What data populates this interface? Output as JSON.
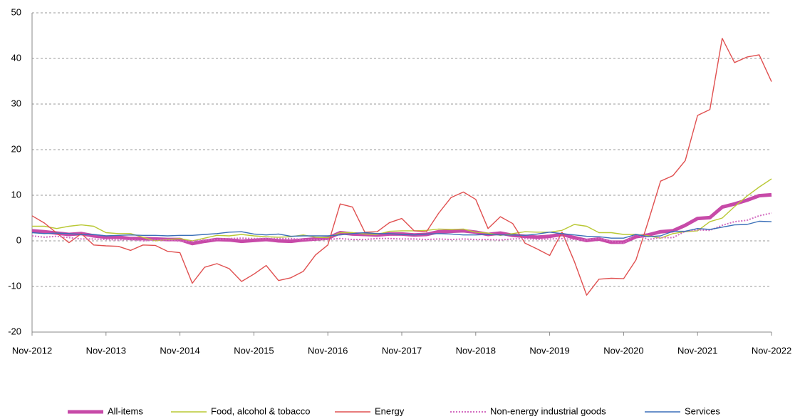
{
  "chart_data": {
    "type": "line",
    "categories": [
      "Nov-2012",
      null,
      null,
      null,
      null,
      null,
      "Nov-2013",
      null,
      null,
      null,
      null,
      null,
      "Nov-2014",
      null,
      null,
      null,
      null,
      null,
      "Nov-2015",
      null,
      null,
      null,
      null,
      null,
      "Nov-2016",
      null,
      null,
      null,
      null,
      null,
      "Nov-2017",
      null,
      null,
      null,
      null,
      null,
      "Nov-2018",
      null,
      null,
      null,
      null,
      null,
      "Nov-2019",
      null,
      null,
      null,
      null,
      null,
      "Nov-2020",
      null,
      null,
      null,
      null,
      null,
      "Nov-2021",
      null,
      null,
      null,
      null,
      null,
      "Nov-2022"
    ],
    "ylim": [
      -20,
      50
    ],
    "yticks": [
      -20,
      -10,
      0,
      10,
      20,
      30,
      40,
      50
    ],
    "grid": true,
    "legend": "bottom",
    "series": [
      {
        "name": "All-items",
        "color": "#c74aa8",
        "width": 5,
        "values": [
          2.2,
          2.0,
          1.7,
          1.4,
          1.6,
          1.1,
          0.8,
          0.8,
          0.5,
          0.5,
          0.4,
          0.3,
          0.3,
          -0.6,
          -0.1,
          0.3,
          0.2,
          -0.1,
          0.1,
          0.3,
          0.0,
          -0.1,
          0.2,
          0.4,
          0.6,
          1.8,
          1.5,
          1.4,
          1.3,
          1.5,
          1.5,
          1.3,
          1.4,
          2.0,
          2.1,
          2.2,
          1.9,
          1.4,
          1.7,
          1.2,
          1.0,
          0.8,
          1.0,
          1.4,
          0.7,
          0.1,
          0.4,
          -0.3,
          -0.3,
          0.9,
          1.3,
          2.0,
          2.2,
          3.4,
          4.9,
          5.1,
          7.4,
          8.1,
          8.9,
          9.9,
          10.1
        ]
      },
      {
        "name": "Food, alcohol & tobacco",
        "color": "#b9c834",
        "width": 1.4,
        "values": [
          3.2,
          3.2,
          2.7,
          3.2,
          3.5,
          3.2,
          1.8,
          1.6,
          1.6,
          0.8,
          0.0,
          0.3,
          0.5,
          0.0,
          0.6,
          1.2,
          1.1,
          1.4,
          1.1,
          0.9,
          0.8,
          0.9,
          1.3,
          0.8,
          0.7,
          1.8,
          1.8,
          1.5,
          1.4,
          2.1,
          2.2,
          2.2,
          2.3,
          2.6,
          2.5,
          2.6,
          1.9,
          1.7,
          1.2,
          1.6,
          2.0,
          1.9,
          1.9,
          2.3,
          3.6,
          3.2,
          1.8,
          1.8,
          1.4,
          1.4,
          1.1,
          0.6,
          1.6,
          2.0,
          2.2,
          4.2,
          5.0,
          7.5,
          9.8,
          11.8,
          13.6
        ]
      },
      {
        "name": "Energy",
        "color": "#e05050",
        "width": 1.4,
        "values": [
          5.5,
          3.9,
          1.7,
          -0.4,
          1.6,
          -0.9,
          -1.1,
          -1.2,
          -2.1,
          -0.9,
          -1.0,
          -2.3,
          -2.6,
          -9.3,
          -5.8,
          -5.0,
          -6.1,
          -8.9,
          -7.3,
          -5.4,
          -8.7,
          -8.1,
          -6.7,
          -3.1,
          -0.9,
          8.1,
          7.4,
          1.9,
          2.0,
          4.0,
          4.9,
          2.2,
          2.0,
          6.1,
          9.5,
          10.7,
          9.1,
          2.7,
          5.3,
          3.8,
          -0.5,
          -1.8,
          -3.2,
          1.9,
          -4.5,
          -11.9,
          -8.4,
          -8.2,
          -8.3,
          -4.2,
          4.3,
          13.1,
          14.3,
          17.6,
          27.5,
          28.8,
          44.4,
          39.1,
          40.3,
          40.8,
          34.9
        ]
      },
      {
        "name": "Non-energy industrial goods",
        "color": "#d36cc0",
        "width": 2,
        "dash": true,
        "values": [
          1.1,
          0.8,
          1.0,
          0.7,
          0.4,
          0.4,
          0.3,
          0.2,
          0.3,
          0.0,
          0.2,
          0.2,
          -0.1,
          -0.1,
          0.2,
          0.3,
          0.5,
          0.6,
          0.5,
          0.5,
          0.5,
          0.5,
          0.3,
          0.3,
          0.3,
          0.5,
          0.3,
          0.3,
          0.5,
          0.5,
          0.4,
          0.4,
          0.3,
          0.4,
          0.3,
          0.4,
          0.3,
          0.3,
          0.2,
          0.4,
          0.5,
          0.3,
          0.4,
          0.5,
          0.3,
          0.2,
          0.6,
          -0.1,
          -0.5,
          1.5,
          0.3,
          0.7,
          0.7,
          2.1,
          2.4,
          2.3,
          3.4,
          4.2,
          4.5,
          5.5,
          6.1
        ]
      },
      {
        "name": "Services",
        "color": "#3a6fb8",
        "width": 1.4,
        "values": [
          1.8,
          1.6,
          1.7,
          1.6,
          1.4,
          1.4,
          1.1,
          1.2,
          1.3,
          1.2,
          1.2,
          1.1,
          1.2,
          1.2,
          1.4,
          1.6,
          1.9,
          2.0,
          1.5,
          1.3,
          1.5,
          1.0,
          1.1,
          1.1,
          1.1,
          1.3,
          1.6,
          1.8,
          1.6,
          1.6,
          1.4,
          1.3,
          1.5,
          1.6,
          1.5,
          1.3,
          1.3,
          1.4,
          1.3,
          1.3,
          1.2,
          1.5,
          1.9,
          1.6,
          1.3,
          1.0,
          0.9,
          0.6,
          0.6,
          1.4,
          0.9,
          1.1,
          2.1,
          2.1,
          2.7,
          2.5,
          3.0,
          3.5,
          3.6,
          4.3,
          4.2
        ]
      }
    ]
  }
}
